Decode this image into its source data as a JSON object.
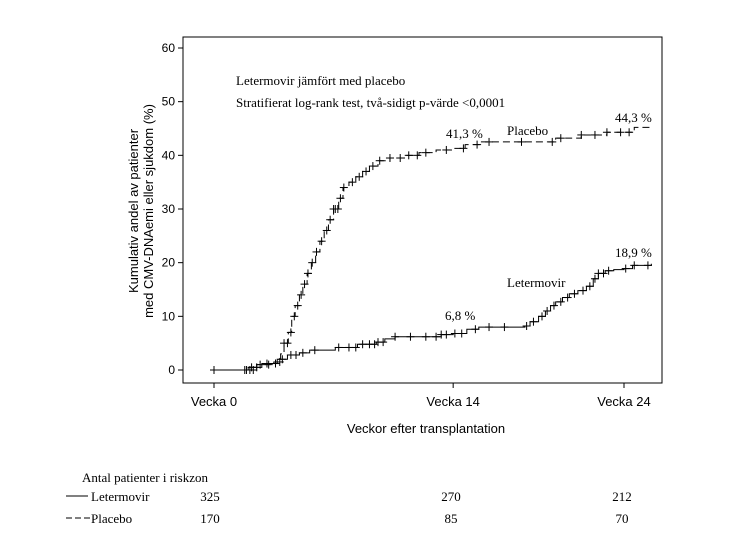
{
  "chart_data": {
    "type": "line",
    "subtype": "kaplan-meier cumulative incidence",
    "xlabel": "Veckor efter transplantation",
    "ylabel_line1": "Kumulativ andel av patienter",
    "ylabel_line2": "med CMV-DNAemi eller sjukdom (%)",
    "ylim": [
      0,
      60
    ],
    "yticks": [
      0,
      10,
      20,
      30,
      40,
      50,
      60
    ],
    "xlim": [
      -1.2,
      25.7
    ],
    "xticks": [
      {
        "value": 0,
        "label": "Vecka 0"
      },
      {
        "value": 14,
        "label": "Vecka 14"
      },
      {
        "value": 24,
        "label": "Vecka 24"
      }
    ],
    "annotations": {
      "title_line1": "Letermovir jämfört med placebo",
      "title_line2": "Stratifierat log-rank test, två-sidigt p-värde <0,0001",
      "placebo_series_label": "Placebo",
      "letermovir_series_label": "Letermovir",
      "placebo_w14": "41,3 %",
      "placebo_w24": "44,3 %",
      "letermovir_w14": "6,8 %",
      "letermovir_w24": "18,9 %"
    },
    "series": [
      {
        "name": "Placebo",
        "style": "dashed",
        "color": "#000000",
        "steps": [
          [
            0,
            0
          ],
          [
            2,
            0
          ],
          [
            2.5,
            1
          ],
          [
            3.5,
            1.5
          ],
          [
            3.9,
            3
          ],
          [
            4.1,
            5
          ],
          [
            4.35,
            7
          ],
          [
            4.55,
            10
          ],
          [
            4.75,
            12
          ],
          [
            5.0,
            14
          ],
          [
            5.2,
            16
          ],
          [
            5.45,
            18
          ],
          [
            5.7,
            20
          ],
          [
            5.95,
            22
          ],
          [
            6.2,
            24
          ],
          [
            6.45,
            26
          ],
          [
            6.7,
            28
          ],
          [
            7.0,
            30
          ],
          [
            7.3,
            32
          ],
          [
            7.55,
            34
          ],
          [
            7.9,
            35
          ],
          [
            8.3,
            36
          ],
          [
            8.7,
            37
          ],
          [
            9.1,
            38
          ],
          [
            9.6,
            39
          ],
          [
            10.3,
            39.5
          ],
          [
            11.2,
            40
          ],
          [
            12.0,
            40.5
          ],
          [
            13.0,
            41
          ],
          [
            14.0,
            41.3
          ],
          [
            14.7,
            42
          ],
          [
            15.6,
            42.5
          ],
          [
            20.0,
            43.2
          ],
          [
            21.5,
            43.8
          ],
          [
            23.0,
            44.3
          ],
          [
            24.6,
            45.2
          ],
          [
            25.6,
            45.2
          ]
        ],
        "censor_x": [
          1.8,
          2.1,
          2.3,
          2.7,
          3.2,
          3.85,
          4.1,
          4.3,
          4.5,
          4.7,
          4.9,
          5.1,
          5.3,
          5.5,
          5.75,
          6.0,
          6.3,
          6.6,
          6.8,
          7.0,
          7.1,
          7.25,
          7.4,
          7.6,
          8.1,
          8.5,
          8.9,
          9.3,
          9.7,
          10.3,
          10.9,
          11.4,
          11.9,
          12.4,
          13.6,
          14.6,
          15.4,
          16.1,
          18.0,
          19.8,
          20.3,
          21.5,
          22.3,
          23.0,
          23.8,
          24.3
        ]
      },
      {
        "name": "Letermovir",
        "style": "solid",
        "color": "#000000",
        "steps": [
          [
            0,
            0
          ],
          [
            2.0,
            0.5
          ],
          [
            2.8,
            1.2
          ],
          [
            3.7,
            2
          ],
          [
            4.3,
            2.8
          ],
          [
            5.0,
            3.2
          ],
          [
            5.6,
            3.7
          ],
          [
            7.1,
            4.2
          ],
          [
            8.4,
            4.8
          ],
          [
            9.5,
            5.2
          ],
          [
            10.0,
            5.8
          ],
          [
            10.6,
            6.2
          ],
          [
            13.3,
            6.6
          ],
          [
            14.0,
            6.8
          ],
          [
            14.8,
            7.6
          ],
          [
            15.5,
            8.0
          ],
          [
            18.2,
            8.2
          ],
          [
            18.5,
            9.0
          ],
          [
            19.0,
            10
          ],
          [
            19.4,
            11
          ],
          [
            19.7,
            12
          ],
          [
            20.0,
            12.7
          ],
          [
            20.4,
            13.5
          ],
          [
            20.8,
            14.2
          ],
          [
            21.3,
            14.8
          ],
          [
            21.8,
            15.6
          ],
          [
            22.2,
            17
          ],
          [
            22.5,
            18
          ],
          [
            22.9,
            18.5
          ],
          [
            23.4,
            18.7
          ],
          [
            24.0,
            18.9
          ],
          [
            24.5,
            19.5
          ],
          [
            25.6,
            19.8
          ]
        ],
        "censor_x": [
          1.9,
          2.2,
          2.5,
          3.1,
          3.6,
          4.0,
          4.5,
          4.8,
          5.2,
          5.9,
          7.3,
          7.9,
          8.3,
          8.7,
          9.1,
          9.4,
          9.6,
          9.9,
          10.6,
          11.5,
          12.4,
          13.0,
          13.3,
          13.6,
          14.1,
          14.5,
          15.3,
          16.1,
          17.0,
          18.3,
          18.7,
          19.2,
          19.5,
          19.9,
          20.3,
          20.7,
          21.1,
          21.6,
          22.0,
          22.3,
          22.5,
          22.8,
          23.1,
          24.1,
          24.6,
          25.4
        ]
      }
    ]
  },
  "risk_table": {
    "title": "Antal patienter i riskzon",
    "rows": [
      {
        "label": "Letermovir",
        "line_style": "solid",
        "values": [
          "325",
          "270",
          "212"
        ]
      },
      {
        "label": "Placebo",
        "line_style": "dashed",
        "values": [
          "170",
          "85",
          "70"
        ]
      }
    ]
  }
}
